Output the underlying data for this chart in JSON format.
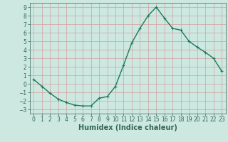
{
  "x": [
    0,
    1,
    2,
    3,
    4,
    5,
    6,
    7,
    8,
    9,
    10,
    11,
    12,
    13,
    14,
    15,
    16,
    17,
    18,
    19,
    20,
    21,
    22,
    23
  ],
  "y": [
    0.5,
    -0.3,
    -1.1,
    -1.8,
    -2.2,
    -2.5,
    -2.6,
    -2.6,
    -1.7,
    -1.5,
    -0.3,
    2.2,
    4.8,
    6.5,
    8.0,
    9.0,
    7.7,
    6.5,
    6.3,
    5.0,
    4.3,
    3.7,
    3.0,
    1.5
  ],
  "line_color": "#1a7a5e",
  "marker": "+",
  "marker_size": 3,
  "marker_linewidth": 0.8,
  "bg_color": "#cce8e0",
  "grid_color": "#d4a0a0",
  "xlabel": "Humidex (Indice chaleur)",
  "xlabel_fontsize": 7,
  "xlabel_fontweight": "bold",
  "xlim": [
    -0.5,
    23.5
  ],
  "ylim": [
    -3.5,
    9.5
  ],
  "yticks": [
    -3,
    -2,
    -1,
    0,
    1,
    2,
    3,
    4,
    5,
    6,
    7,
    8,
    9
  ],
  "xticks": [
    0,
    1,
    2,
    3,
    4,
    5,
    6,
    7,
    8,
    9,
    10,
    11,
    12,
    13,
    14,
    15,
    16,
    17,
    18,
    19,
    20,
    21,
    22,
    23
  ],
  "tick_fontsize": 5.5,
  "linewidth": 1.0,
  "spine_color": "#336655",
  "tick_color": "#336655",
  "label_color": "#336655"
}
